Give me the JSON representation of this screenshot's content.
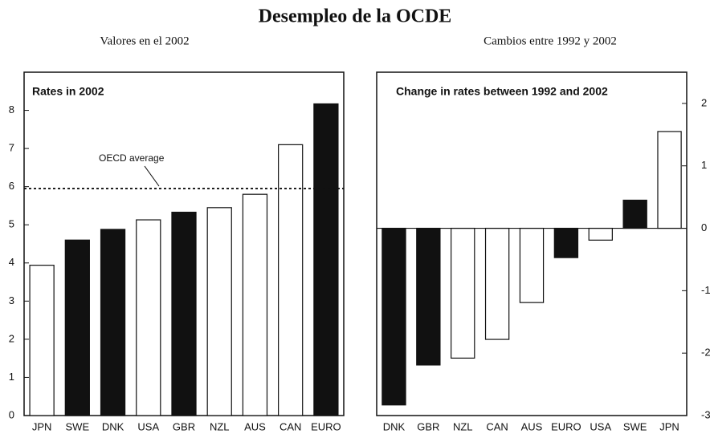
{
  "title": "Desempleo de la OCDE",
  "subtitles": [
    "Valores en el 2002",
    "Cambios entre 1992 y 2002"
  ],
  "chart_data": [
    {
      "type": "bar",
      "title": "Rates in 2002",
      "categories": [
        "JPN",
        "SWE",
        "DNK",
        "USA",
        "GBR",
        "NZL",
        "AUS",
        "CAN",
        "EURO"
      ],
      "values": [
        3.94,
        4.6,
        4.88,
        5.13,
        5.33,
        5.45,
        5.8,
        7.1,
        8.17
      ],
      "colors": [
        "#ffffff",
        "#111111",
        "#111111",
        "#ffffff",
        "#111111",
        "#ffffff",
        "#ffffff",
        "#ffffff",
        "#111111"
      ],
      "ylim": [
        0,
        9
      ],
      "yticks": [
        0,
        1,
        2,
        3,
        4,
        5,
        6,
        7,
        8
      ],
      "y_axis_side": "left",
      "reference_line": {
        "label": "OECD average",
        "value": 5.95
      }
    },
    {
      "type": "bar",
      "title": "Change in rates between 1992 and 2002",
      "categories": [
        "DNK",
        "GBR",
        "NZL",
        "CAN",
        "AUS",
        "EURO",
        "USA",
        "SWE",
        "JPN"
      ],
      "values": [
        -2.83,
        -2.19,
        -2.08,
        -1.78,
        -1.19,
        -0.47,
        -0.19,
        0.45,
        1.55
      ],
      "colors": [
        "#111111",
        "#111111",
        "#ffffff",
        "#ffffff",
        "#ffffff",
        "#111111",
        "#ffffff",
        "#111111",
        "#ffffff"
      ],
      "ylim": [
        -3,
        2.5
      ],
      "yticks": [
        -3,
        -2,
        -1,
        0,
        1,
        2
      ],
      "y_axis_side": "right"
    }
  ]
}
